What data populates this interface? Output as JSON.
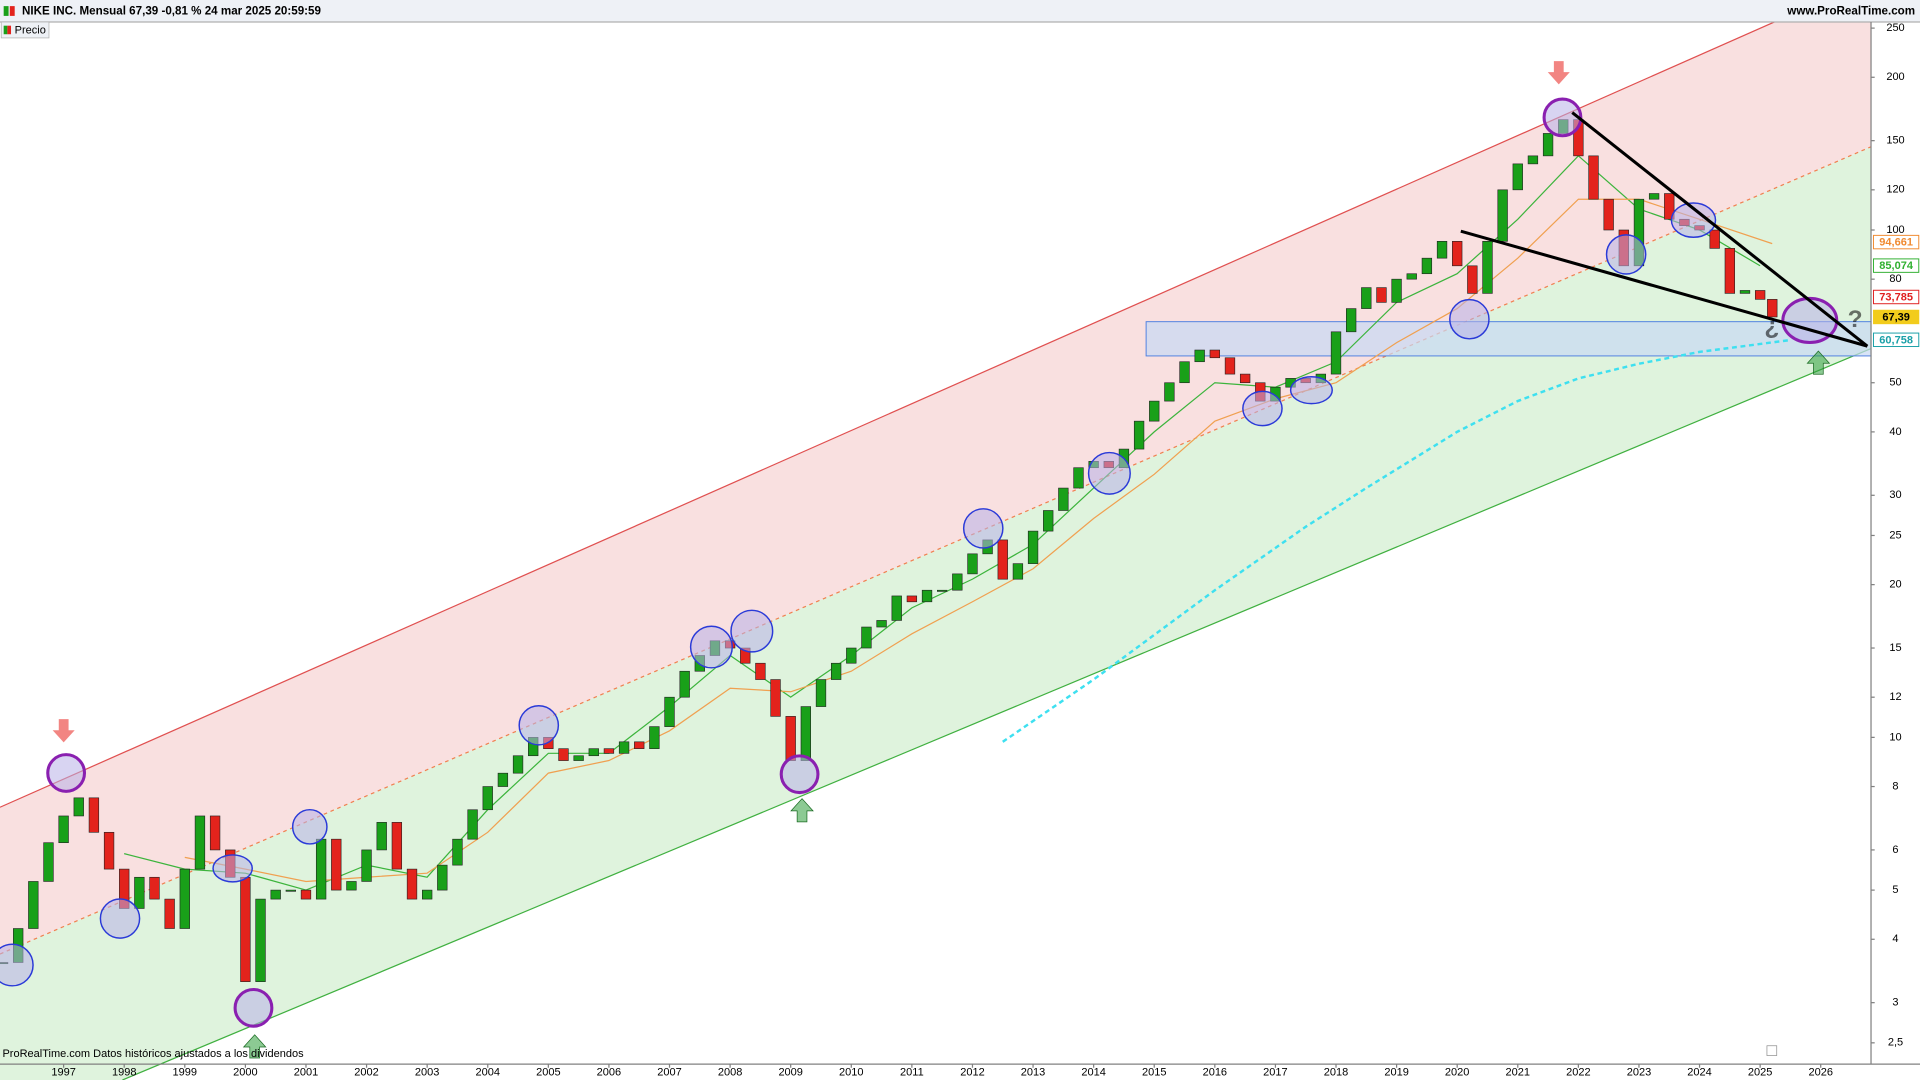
{
  "header": {
    "title": "NIKE INC. Mensual 67,39 -0,81 % 24 mar 2025 20:59:59",
    "site": "www.ProRealTime.com"
  },
  "footer": "ProRealTime.com Datos históricos ajustados a los dividendos",
  "annotations": {
    "open_question": "¿",
    "close_question": "?"
  },
  "chart_data": {
    "type": "candlestick",
    "log_scale": true,
    "xlim": [
      1995.95,
      2026.83
    ],
    "ylim": [
      2.27,
      257
    ],
    "xticks": [
      1997,
      1998,
      1999,
      2000,
      2001,
      2002,
      2003,
      2004,
      2005,
      2006,
      2007,
      2008,
      2009,
      2010,
      2011,
      2012,
      2013,
      2014,
      2015,
      2016,
      2017,
      2018,
      2019,
      2020,
      2021,
      2022,
      2023,
      2024,
      2025,
      2026
    ],
    "yticks": [
      {
        "value": 2.5,
        "label": "2,5"
      },
      3,
      4,
      5,
      6,
      8,
      10,
      12,
      15,
      20,
      25,
      30,
      40,
      50,
      80,
      100,
      120,
      150,
      200,
      250
    ],
    "series": [
      {
        "name": "Precio",
        "up_color": "#19a019",
        "down_color": "#e3231c",
        "x": [
          1996,
          1996.25,
          1996.5,
          1996.75,
          1997,
          1997.25,
          1997.5,
          1997.75,
          1998,
          1998.25,
          1998.5,
          1998.75,
          1999,
          1999.25,
          1999.5,
          1999.75,
          2000,
          2000.25,
          2000.5,
          2000.75,
          2001,
          2001.25,
          2001.5,
          2001.75,
          2002,
          2002.25,
          2002.5,
          2002.75,
          2003,
          2003.25,
          2003.5,
          2003.75,
          2004,
          2004.25,
          2004.5,
          2004.75,
          2005,
          2005.25,
          2005.5,
          2005.75,
          2006,
          2006.25,
          2006.5,
          2006.75,
          2007,
          2007.25,
          2007.5,
          2007.75,
          2008,
          2008.25,
          2008.5,
          2008.75,
          2009,
          2009.25,
          2009.5,
          2009.75,
          2010,
          2010.25,
          2010.5,
          2010.75,
          2011,
          2011.25,
          2011.5,
          2011.75,
          2012,
          2012.25,
          2012.5,
          2012.75,
          2013,
          2013.25,
          2013.5,
          2013.75,
          2014,
          2014.25,
          2014.5,
          2014.75,
          2015,
          2015.25,
          2015.5,
          2015.75,
          2016,
          2016.25,
          2016.5,
          2016.75,
          2017,
          2017.25,
          2017.5,
          2017.75,
          2018,
          2018.25,
          2018.5,
          2018.75,
          2019,
          2019.25,
          2019.5,
          2019.75,
          2020,
          2020.25,
          2020.5,
          2020.75,
          2021,
          2021.25,
          2021.5,
          2021.75,
          2022,
          2022.25,
          2022.5,
          2022.75,
          2023,
          2023.25,
          2023.5,
          2023.75,
          2024,
          2024.25,
          2024.5,
          2024.75,
          2025,
          2025.2
        ],
        "values": [
          3.6,
          4.2,
          5.2,
          6.2,
          7.0,
          7.6,
          6.5,
          5.5,
          4.6,
          5.3,
          4.8,
          4.2,
          5.5,
          7.0,
          6.0,
          5.3,
          3.3,
          4.8,
          5.0,
          5.0,
          4.8,
          6.3,
          5.0,
          5.2,
          6.0,
          6.8,
          5.5,
          4.8,
          5.0,
          5.6,
          6.3,
          7.2,
          8.0,
          8.5,
          9.2,
          10.0,
          9.5,
          9.0,
          9.2,
          9.5,
          9.3,
          9.8,
          9.5,
          10.5,
          12.0,
          13.5,
          14.5,
          15.5,
          15.0,
          14.0,
          13.0,
          11.0,
          9.0,
          11.5,
          13.0,
          14.0,
          15.0,
          16.5,
          17.0,
          19.0,
          18.5,
          19.5,
          19.5,
          21.0,
          23.0,
          24.5,
          20.5,
          22.0,
          25.5,
          28.0,
          31.0,
          34.0,
          35.0,
          34.0,
          37.0,
          42.0,
          46.0,
          50.0,
          55.0,
          58.0,
          56.0,
          52.0,
          50.0,
          46.0,
          49.0,
          51.0,
          50.0,
          52.0,
          63.0,
          70.0,
          77.0,
          72.0,
          80.0,
          82.0,
          88.0,
          95.0,
          85.0,
          75.0,
          95.0,
          120.0,
          135.0,
          140.0,
          155.0,
          165.0,
          140.0,
          115.0,
          100.0,
          85.0,
          115.0,
          118.0,
          105.0,
          102.0,
          100.0,
          92.0,
          75.0,
          76.0,
          73.0,
          67.39
        ]
      },
      {
        "type": "line",
        "color": "#3cb43c",
        "x": [
          1998,
          1999,
          2000,
          2001,
          2002,
          2003,
          2004,
          2005,
          2006,
          2007,
          2008,
          2009,
          2010,
          2011,
          2012,
          2013,
          2014,
          2015,
          2016,
          2017,
          2018,
          2019,
          2020,
          2021,
          2022,
          2023,
          2024,
          2025
        ],
        "values": [
          5.9,
          5.5,
          5.4,
          5.0,
          5.6,
          5.3,
          7.2,
          9.3,
          9.3,
          11.5,
          14.5,
          12.0,
          14.5,
          18.0,
          20.5,
          24.0,
          31.0,
          40.0,
          50.0,
          49.0,
          55.0,
          72.0,
          82.0,
          105.0,
          140.0,
          110.0,
          100.0,
          85.0
        ]
      },
      {
        "type": "line",
        "color": "#f0a050",
        "x": [
          1999,
          2000,
          2001,
          2002,
          2003,
          2004,
          2005,
          2006,
          2007,
          2008,
          2009,
          2010,
          2011,
          2012,
          2013,
          2014,
          2015,
          2016,
          2017,
          2018,
          2019,
          2020,
          2021,
          2022,
          2023,
          2024,
          2025.2
        ],
        "values": [
          5.8,
          5.5,
          5.2,
          5.3,
          5.4,
          6.5,
          8.5,
          9.0,
          10.3,
          12.5,
          12.3,
          13.5,
          16.0,
          18.5,
          21.5,
          27.0,
          33.0,
          42.0,
          46.5,
          50.0,
          60.0,
          70.0,
          88.0,
          115.0,
          115.0,
          105.0,
          94.0
        ]
      },
      {
        "type": "dashed",
        "color": "#3ee0f0",
        "x": [
          2012.5,
          2014,
          2016,
          2017.5,
          2018.5,
          2020,
          2021,
          2022,
          2023,
          2024,
          2025.5
        ],
        "values": [
          9.8,
          13.0,
          19.5,
          26.0,
          31.0,
          40.0,
          46.0,
          51.0,
          54.5,
          57.5,
          60.7
        ]
      }
    ],
    "price_tags": [
      {
        "value": 94.661,
        "label": "94,661",
        "color": "#f08a30"
      },
      {
        "value": 85.074,
        "label": "85,074",
        "color": "#30b030"
      },
      {
        "value": 73.785,
        "label": "73,785",
        "color": "#e02020"
      },
      {
        "value": 67.39,
        "label": "67,39",
        "color": "#000000",
        "fill": "#f2cc1c"
      },
      {
        "value": 60.758,
        "label": "60,758",
        "color": "#1aa0a8"
      }
    ]
  }
}
